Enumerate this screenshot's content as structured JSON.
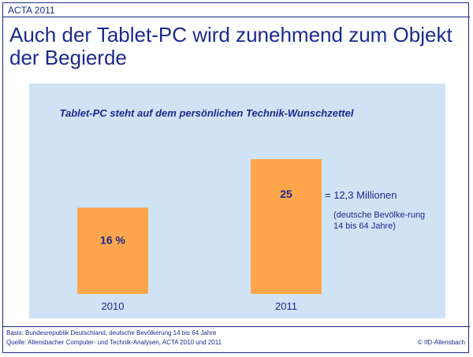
{
  "header": {
    "label": "ACTA 2011"
  },
  "title": "Auch der Tablet-PC wird zunehmend zum Objekt der Begierde",
  "footer": {
    "basis": "Basis: Bundesrepublik Deutschland, deutsche Bevölkerung 14 bis 64 Jahre",
    "quelle": "Quelle: Allensbacher Computer- und Technik-Analysen, ACTA 2010 und 2011",
    "copyright": "© IfD-Allensbach"
  },
  "annotation": {
    "equals": "= 12,3 Millionen",
    "population_note": "(deutsche Bevölke-rung 14 bis 64 Jahre)"
  },
  "colors": {
    "bar": "#ffa54c",
    "panel": "#cfe3f5",
    "text": "#1c2a8c"
  },
  "chart_data": {
    "type": "bar",
    "title": "Tablet-PC steht auf dem persönlichen Technik-Wunschzettel",
    "categories": [
      "2010",
      "2011"
    ],
    "values": [
      16,
      25
    ],
    "value_labels": [
      "16 %",
      "25"
    ],
    "unit": "%",
    "xlabel": "",
    "ylabel": "",
    "ylim": [
      0,
      25
    ],
    "grid": false,
    "legend": "none"
  }
}
